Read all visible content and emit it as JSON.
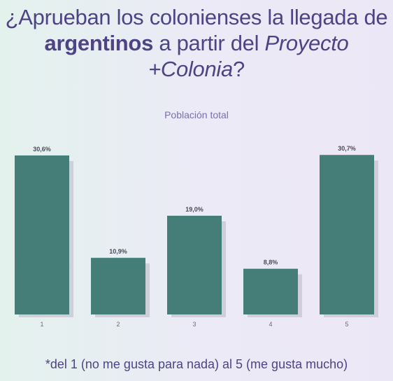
{
  "title": {
    "part1": "¿Aprueban los colonienses la llegada de ",
    "bold": "argentinos",
    "part2": " a partir del ",
    "italic": "Proyecto +Colonia",
    "part3": "?"
  },
  "footnote": "*del 1 (no me gusta para nada) al 5 (me gusta mucho)",
  "colors": {
    "bar": "#457e79",
    "title": "#4e4384"
  },
  "chart_data": {
    "type": "bar",
    "subtitle": "Población total",
    "categories": [
      "1",
      "2",
      "3",
      "4",
      "5"
    ],
    "values": [
      30.6,
      10.9,
      19.0,
      8.8,
      30.7
    ],
    "value_labels": [
      "30,6%",
      "10,9%",
      "19,0%",
      "8,8%",
      "30,7%"
    ],
    "ylim": [
      0,
      31
    ],
    "xlabel": "",
    "ylabel": "",
    "grid": false,
    "legend": "none"
  }
}
